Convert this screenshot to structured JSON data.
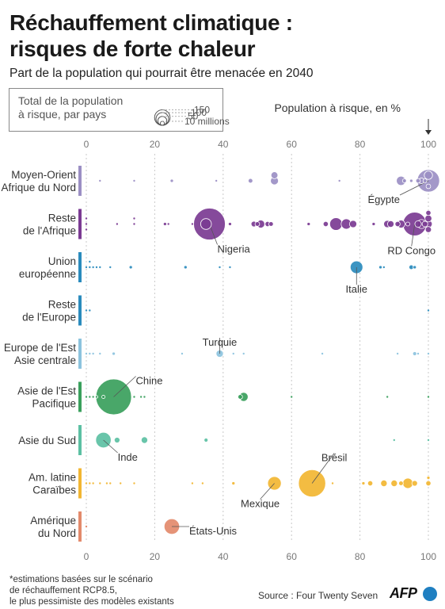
{
  "header": {
    "title_line1": "Réchauffement climatique :",
    "title_line2": "risques de forte chaleur",
    "subtitle": "Part de la population qui pourrait être menacée en 2040"
  },
  "legend": {
    "label_line1": "Total de la population",
    "label_line2": "à risque, par pays",
    "sizes": [
      "150",
      "100",
      "50",
      "10 millions"
    ]
  },
  "axis_title": "Population à risque, en %",
  "notes": {
    "line1": "*estimations basées sur le scénario",
    "line2": "de réchauffement RCP8.5,",
    "line3": "le plus pessimiste des modèles existants"
  },
  "source": "Source : Four Twenty Seven",
  "logo": "AFP",
  "colors": {
    "Moyen-Orient Afrique du Nord": "#9b8fc4",
    "Reste de l'Afrique": "#7b3b93",
    "Union européenne": "#2a8bbd",
    "Reste de l'Europe": "#2a8bbd",
    "Europe de l'Est Asie centrale": "#8cc3de",
    "Asie de l'Est Pacifique": "#3aa05c",
    "Asie du Sud": "#5cc0a3",
    "Am. latine Caraïbes": "#f2b632",
    "Amérique du Nord": "#e38a6b"
  },
  "chart_data": {
    "type": "scatter",
    "xlim": [
      0,
      100
    ],
    "x_ticks": [
      "0",
      "20",
      "40",
      "60",
      "80",
      "100"
    ],
    "grid": true,
    "legend_placement": "top-left",
    "rows": [
      {
        "label_line1": "Moyen-Orient",
        "label_line2": "Afrique du Nord",
        "color": "#9b8fc4",
        "points": [
          {
            "x": 4,
            "size": 1
          },
          {
            "x": 14,
            "size": 1
          },
          {
            "x": 25,
            "size": 2
          },
          {
            "x": 38,
            "size": 1
          },
          {
            "x": 48,
            "size": 4
          },
          {
            "x": 55,
            "size": 12
          },
          {
            "x": 55,
            "size": 9
          },
          {
            "x": 74,
            "size": 1
          },
          {
            "x": 92,
            "size": 16
          },
          {
            "x": 93,
            "size": 3
          },
          {
            "x": 95,
            "size": 2
          },
          {
            "x": 97,
            "size": 4
          },
          {
            "x": 98,
            "size": 6
          },
          {
            "x": 99,
            "size": 3
          },
          {
            "x": 100,
            "size": 13
          },
          {
            "x": 100,
            "size": 4
          },
          {
            "x": 100,
            "size": 95,
            "label": "Égypte"
          }
        ]
      },
      {
        "label_line1": "Reste",
        "label_line2": "de l'Afrique",
        "color": "#7b3b93",
        "points": [
          {
            "x": 0,
            "size": 1
          },
          {
            "x": 0,
            "size": 1
          },
          {
            "x": 0,
            "size": 1
          },
          {
            "x": 9,
            "size": 1
          },
          {
            "x": 14,
            "size": 1
          },
          {
            "x": 14,
            "size": 1
          },
          {
            "x": 23,
            "size": 2
          },
          {
            "x": 24,
            "size": 1
          },
          {
            "x": 31,
            "size": 1
          },
          {
            "x": 35,
            "size": 22
          },
          {
            "x": 36,
            "size": 190,
            "label": "Nigeria"
          },
          {
            "x": 42,
            "size": 2
          },
          {
            "x": 49,
            "size": 6
          },
          {
            "x": 50,
            "size": 4
          },
          {
            "x": 51,
            "size": 12
          },
          {
            "x": 53,
            "size": 5
          },
          {
            "x": 54,
            "size": 4
          },
          {
            "x": 65,
            "size": 2
          },
          {
            "x": 70,
            "size": 5
          },
          {
            "x": 73,
            "size": 30
          },
          {
            "x": 76,
            "size": 20
          },
          {
            "x": 78,
            "size": 10
          },
          {
            "x": 84,
            "size": 2
          },
          {
            "x": 88,
            "size": 10
          },
          {
            "x": 89,
            "size": 8
          },
          {
            "x": 91,
            "size": 5
          },
          {
            "x": 92,
            "size": 12
          },
          {
            "x": 94,
            "size": 3
          },
          {
            "x": 96,
            "size": 105,
            "label": "RD Congo"
          },
          {
            "x": 97,
            "size": 8
          },
          {
            "x": 98,
            "size": 15
          },
          {
            "x": 99,
            "size": 6
          },
          {
            "x": 100,
            "size": 9
          },
          {
            "x": 100,
            "size": 11
          },
          {
            "x": 100,
            "size": 7
          },
          {
            "x": 100,
            "size": 5
          }
        ]
      },
      {
        "label_line1": "Union",
        "label_line2": "européenne",
        "color": "#2a8bbd",
        "points": [
          {
            "x": 0,
            "size": 1
          },
          {
            "x": 1,
            "size": 1
          },
          {
            "x": 1,
            "size": 1
          },
          {
            "x": 2,
            "size": 1
          },
          {
            "x": 3,
            "size": 1
          },
          {
            "x": 4,
            "size": 1
          },
          {
            "x": 7,
            "size": 1
          },
          {
            "x": 13,
            "size": 2
          },
          {
            "x": 29,
            "size": 2
          },
          {
            "x": 39,
            "size": 1
          },
          {
            "x": 42,
            "size": 1
          },
          {
            "x": 79,
            "size": 30,
            "label": "Italie"
          },
          {
            "x": 86,
            "size": 2
          },
          {
            "x": 87,
            "size": 1
          },
          {
            "x": 95,
            "size": 4
          },
          {
            "x": 96,
            "size": 2
          }
        ]
      },
      {
        "label_line1": "Reste",
        "label_line2": "de l'Europe",
        "color": "#2a8bbd",
        "points": [
          {
            "x": 0,
            "size": 1
          },
          {
            "x": 1,
            "size": 1
          },
          {
            "x": 100,
            "size": 1
          }
        ]
      },
      {
        "label_line1": "Europe de l'Est",
        "label_line2": "Asie centrale",
        "color": "#8cc3de",
        "points": [
          {
            "x": 0,
            "size": 1
          },
          {
            "x": 1,
            "size": 1
          },
          {
            "x": 2,
            "size": 1
          },
          {
            "x": 4,
            "size": 1
          },
          {
            "x": 8,
            "size": 2
          },
          {
            "x": 28,
            "size": 1
          },
          {
            "x": 39,
            "size": 10,
            "label": "Turquie"
          },
          {
            "x": 43,
            "size": 1
          },
          {
            "x": 46,
            "size": 1
          },
          {
            "x": 69,
            "size": 1
          },
          {
            "x": 91,
            "size": 1
          },
          {
            "x": 96,
            "size": 3
          },
          {
            "x": 97,
            "size": 1
          },
          {
            "x": 100,
            "size": 1
          }
        ]
      },
      {
        "label_line1": "Asie de l'Est",
        "label_line2": "Pacifique",
        "color": "#3aa05c",
        "points": [
          {
            "x": 0,
            "size": 1
          },
          {
            "x": 1,
            "size": 1
          },
          {
            "x": 2,
            "size": 1
          },
          {
            "x": 3,
            "size": 1
          },
          {
            "x": 5,
            "size": 2
          },
          {
            "x": 8,
            "size": 240,
            "label": "Chine"
          },
          {
            "x": 14,
            "size": 1
          },
          {
            "x": 16,
            "size": 1
          },
          {
            "x": 17,
            "size": 1
          },
          {
            "x": 46,
            "size": 15
          },
          {
            "x": 45,
            "size": 4
          },
          {
            "x": 60,
            "size": 1
          },
          {
            "x": 88,
            "size": 1
          },
          {
            "x": 100,
            "size": 1
          }
        ]
      },
      {
        "label_line1": "Asie du Sud",
        "label_line2": "",
        "color": "#5cc0a3",
        "points": [
          {
            "x": 5,
            "size": 45,
            "label": "Inde"
          },
          {
            "x": 9,
            "size": 6
          },
          {
            "x": 17,
            "size": 8
          },
          {
            "x": 35,
            "size": 3
          },
          {
            "x": 90,
            "size": 1
          },
          {
            "x": 100,
            "size": 1
          }
        ]
      },
      {
        "label_line1": "Am. latine",
        "label_line2": "Caraïbes",
        "color": "#f2b632",
        "points": [
          {
            "x": 0,
            "size": 1
          },
          {
            "x": 1,
            "size": 1
          },
          {
            "x": 2,
            "size": 1
          },
          {
            "x": 4,
            "size": 1
          },
          {
            "x": 6,
            "size": 1
          },
          {
            "x": 7,
            "size": 1
          },
          {
            "x": 10,
            "size": 1
          },
          {
            "x": 14,
            "size": 1
          },
          {
            "x": 31,
            "size": 1
          },
          {
            "x": 34,
            "size": 1
          },
          {
            "x": 43,
            "size": 2
          },
          {
            "x": 55,
            "size": 35,
            "label": "Mexique"
          },
          {
            "x": 66,
            "size": 140,
            "label": "Brésil"
          },
          {
            "x": 72,
            "size": 1
          },
          {
            "x": 81,
            "size": 2
          },
          {
            "x": 83,
            "size": 5
          },
          {
            "x": 87,
            "size": 8
          },
          {
            "x": 90,
            "size": 8
          },
          {
            "x": 92,
            "size": 4
          },
          {
            "x": 94,
            "size": 20
          },
          {
            "x": 96,
            "size": 6
          },
          {
            "x": 100,
            "size": 5
          },
          {
            "x": 100,
            "size": 2
          }
        ]
      },
      {
        "label_line1": "Amérique",
        "label_line2": "du Nord",
        "color": "#e38a6b",
        "points": [
          {
            "x": 0,
            "size": 1
          },
          {
            "x": 25,
            "size": 45,
            "label": "États-Unis"
          }
        ]
      }
    ]
  }
}
